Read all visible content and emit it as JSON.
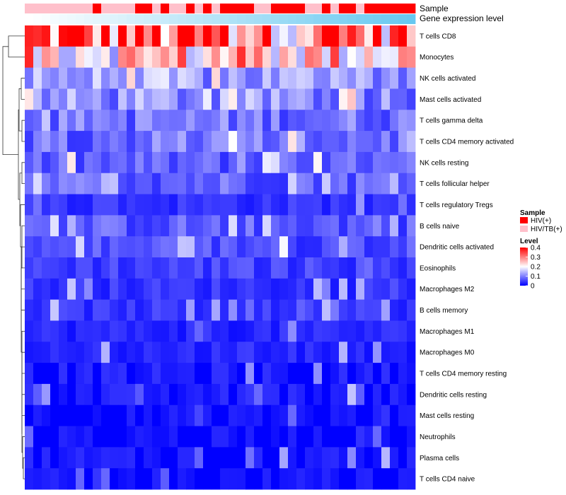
{
  "chart_data": {
    "type": "heatmap",
    "annotation_labels": [
      "Sample",
      "Gene expression level"
    ],
    "row_labels": [
      "T cells CD8",
      "Monocytes",
      "NK cells activated",
      "Mast cells activated",
      "T cells gamma delta",
      "T cells CD4 memory activated",
      "NK cells resting",
      "T cells follicular helper",
      "T cells regulatory  Tregs",
      "B cells naive",
      "Dendritic cells activated",
      "Eosinophils",
      "Macrophages M2",
      "B cells memory",
      "Macrophages M1",
      "Macrophages M0",
      "T cells CD4 memory resting",
      "Dendritic cells resting",
      "Mast cells resting",
      "Neutrophils",
      "Plasma cells",
      "T cells CD4 naive"
    ],
    "column_count": 46,
    "sample_groups": [
      "HIV/TB(+)",
      "HIV/TB(+)",
      "HIV/TB(+)",
      "HIV/TB(+)",
      "HIV/TB(+)",
      "HIV/TB(+)",
      "HIV/TB(+)",
      "HIV/TB(+)",
      "HIV(+)",
      "HIV/TB(+)",
      "HIV/TB(+)",
      "HIV/TB(+)",
      "HIV/TB(+)",
      "HIV(+)",
      "HIV(+)",
      "HIV/TB(+)",
      "HIV(+)",
      "HIV/TB(+)",
      "HIV/TB(+)",
      "HIV(+)",
      "HIV/TB(+)",
      "HIV(+)",
      "HIV/TB(+)",
      "HIV(+)",
      "HIV(+)",
      "HIV(+)",
      "HIV(+)",
      "HIV/TB(+)",
      "HIV/TB(+)",
      "HIV(+)",
      "HIV(+)",
      "HIV(+)",
      "HIV(+)",
      "HIV/TB(+)",
      "HIV/TB(+)",
      "HIV(+)",
      "HIV/TB(+)",
      "HIV(+)",
      "HIV(+)",
      "HIV/TB(+)",
      "HIV(+)",
      "HIV(+)",
      "HIV(+)",
      "HIV(+)",
      "HIV(+)",
      "HIV(+)"
    ],
    "expression_level_annotation": [
      0.0,
      0.02,
      0.04,
      0.07,
      0.09,
      0.11,
      0.13,
      0.16,
      0.18,
      0.2,
      0.22,
      0.24,
      0.27,
      0.29,
      0.31,
      0.33,
      0.36,
      0.38,
      0.4,
      0.42,
      0.44,
      0.47,
      0.49,
      0.51,
      0.53,
      0.56,
      0.58,
      0.6,
      0.62,
      0.64,
      0.67,
      0.69,
      0.71,
      0.73,
      0.76,
      0.78,
      0.8,
      0.82,
      0.84,
      0.87,
      0.89,
      0.91,
      0.93,
      0.96,
      0.98,
      1.0
    ],
    "row_mean_levels": [
      0.32,
      0.24,
      0.12,
      0.11,
      0.09,
      0.09,
      0.07,
      0.08,
      0.04,
      0.07,
      0.06,
      0.05,
      0.04,
      0.04,
      0.03,
      0.03,
      0.02,
      0.02,
      0.01,
      0.01,
      0.02,
      0.01
    ],
    "legend": {
      "sample": {
        "title": "Sample",
        "items": [
          {
            "label": "HIV(+)",
            "color": "#ff0000"
          },
          {
            "label": "HIV/TB(+)",
            "color": "#ffc0cb"
          }
        ]
      },
      "level": {
        "title": "Level",
        "range": [
          0,
          0.4
        ],
        "ticks": [
          {
            "value": 0.4,
            "label": "0.4"
          },
          {
            "value": 0.3,
            "label": "0.3"
          },
          {
            "value": 0.2,
            "label": "0.2"
          },
          {
            "value": 0.1,
            "label": "0.1"
          },
          {
            "value": 0,
            "label": "0"
          }
        ],
        "colors": {
          "low": "#0000ff",
          "mid": "#ffffff",
          "high": "#ff0000"
        }
      }
    },
    "annotation_colors": {
      "low": "#ffffff",
      "high": "#67c8f0"
    }
  }
}
